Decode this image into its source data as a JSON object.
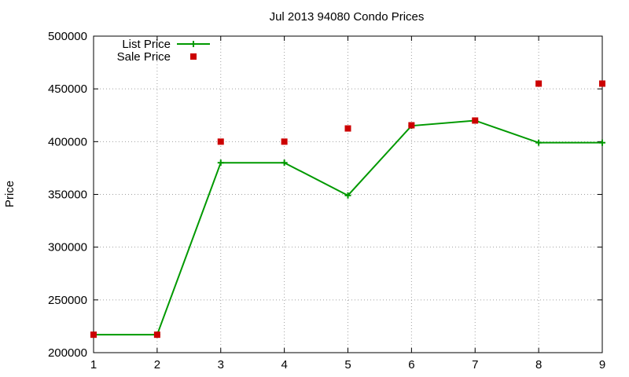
{
  "chart_data": {
    "type": "line",
    "title": "Jul 2013 94080 Condo Prices",
    "xlabel": "",
    "ylabel": "Price",
    "xlim": [
      1,
      9
    ],
    "ylim": [
      200000,
      500000
    ],
    "x_ticks": [
      1,
      2,
      3,
      4,
      5,
      6,
      7,
      8,
      9
    ],
    "y_ticks": [
      200000,
      250000,
      300000,
      350000,
      400000,
      450000,
      500000
    ],
    "x_tick_labels": [
      "1",
      "2",
      "3",
      "4",
      "5",
      "6",
      "7",
      "8",
      "9"
    ],
    "y_tick_labels": [
      "200000",
      "250000",
      "300000",
      "350000",
      "400000",
      "450000",
      "500000"
    ],
    "grid": true,
    "legend_position": "top-left",
    "series": [
      {
        "name": "List Price",
        "style": "linespoints",
        "color": "#009900",
        "x": [
          1,
          2,
          3,
          4,
          5,
          6,
          7,
          8,
          9
        ],
        "values": [
          217000,
          217000,
          380000,
          380000,
          349000,
          415000,
          420000,
          399000,
          399000
        ]
      },
      {
        "name": "Sale Price",
        "style": "points",
        "color": "#cc0000",
        "x": [
          1,
          2,
          3,
          4,
          5,
          6,
          7,
          8,
          9
        ],
        "values": [
          217000,
          217000,
          400000,
          400000,
          412500,
          415500,
          420000,
          455000,
          455000
        ]
      }
    ]
  }
}
